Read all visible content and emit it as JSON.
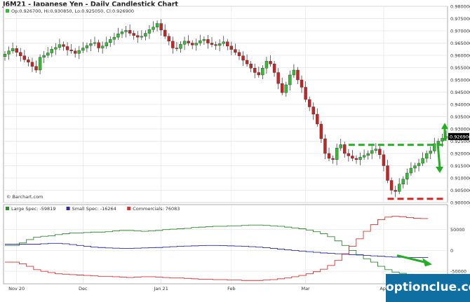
{
  "chart_title": "J6M21 - Japanese Yen - Daily Candlestick Chart",
  "ohlc_label": "Op:0.926700, Hi:0.930850, Lo:0.925050, Cl:0.926900",
  "last_price_label": "0.926900",
  "credit": "© Barchart.com",
  "watermark": "optionclue.com",
  "colors": {
    "up": "#2fbf2f",
    "down": "#cc2222",
    "large_spec": "#2e8b2e",
    "small_spec": "#2b2bb0",
    "commercials": "#e03030",
    "annotation_green": "#22b022",
    "annotation_red": "#dd2222",
    "watermark_bg": "#0f6fa3"
  },
  "chart_data": [
    {
      "type": "candlestick",
      "title": "J6M21 - Japanese Yen - Daily Candlestick Chart",
      "ylim": [
        0.9,
        0.98
      ],
      "ytick_step": 0.005,
      "x_labels": [
        "Nov 20",
        "Dec",
        "Jan 21",
        "Feb",
        "Mar",
        "Apr"
      ],
      "x_label_index": [
        3,
        20,
        40,
        58,
        77,
        97
      ],
      "num_bars": 114,
      "closes": [
        0.9605,
        0.9618,
        0.9628,
        0.9612,
        0.9598,
        0.9582,
        0.9572,
        0.9555,
        0.954,
        0.9592,
        0.96,
        0.961,
        0.9625,
        0.9632,
        0.9644,
        0.9636,
        0.9622,
        0.9618,
        0.9608,
        0.962,
        0.963,
        0.964,
        0.9648,
        0.9652,
        0.963,
        0.9638,
        0.9652,
        0.9665,
        0.9674,
        0.9688,
        0.9696,
        0.9702,
        0.969,
        0.9681,
        0.9674,
        0.9678,
        0.969,
        0.9705,
        0.9715,
        0.973,
        0.9703,
        0.9678,
        0.9658,
        0.963,
        0.9628,
        0.9645,
        0.9658,
        0.965,
        0.9642,
        0.965,
        0.966,
        0.9665,
        0.965,
        0.9644,
        0.964,
        0.9648,
        0.9655,
        0.9638,
        0.9624,
        0.9612,
        0.9598,
        0.958,
        0.9565,
        0.9548,
        0.953,
        0.952,
        0.9548,
        0.9576,
        0.9565,
        0.953,
        0.9485,
        0.9448,
        0.948,
        0.952,
        0.954,
        0.95,
        0.947,
        0.942,
        0.939,
        0.936,
        0.932,
        0.926,
        0.92,
        0.918,
        0.9175,
        0.9222,
        0.9236,
        0.92,
        0.919,
        0.918,
        0.9175,
        0.9185,
        0.9192,
        0.92,
        0.9212,
        0.9218,
        0.9195,
        0.915,
        0.909,
        0.905,
        0.9045,
        0.9075,
        0.9095,
        0.912,
        0.914,
        0.915,
        0.916,
        0.918,
        0.92,
        0.921,
        0.924,
        0.925,
        0.9262,
        0.9269
      ],
      "last_price": 0.9269,
      "annotations": {
        "resistance_level": 0.9235,
        "support_level": 0.9015
      }
    },
    {
      "type": "line",
      "title": "COT positions",
      "ylim": [
        -80000,
        110000
      ],
      "yticks": [
        50000,
        0,
        -50000
      ],
      "series": [
        {
          "name": "Large Spec",
          "legend_value": -59819,
          "values": [
            12000,
            12000,
            18000,
            26000,
            32000,
            34000,
            35000,
            38000,
            40000,
            42000,
            42000,
            43000,
            44000,
            44000,
            45000,
            47000,
            48000,
            48000,
            47000,
            46000,
            47000,
            48000,
            50000,
            51000,
            52000,
            53000,
            55000,
            56000,
            57000,
            58000,
            58000,
            59000,
            59000,
            60000,
            61000,
            61000,
            60000,
            59000,
            58000,
            56000,
            54000,
            52000,
            49000,
            45000,
            40000,
            33000,
            23000,
            12000,
            0,
            -10000,
            -20000,
            -28000,
            -38000,
            -46000,
            -52000,
            -55000,
            -57000,
            -58000,
            -59000,
            -59819
          ]
        },
        {
          "name": "Small Spec",
          "legend_value": -16264,
          "values": [
            15000,
            15000,
            15000,
            15000,
            15000,
            16000,
            17000,
            17000,
            16000,
            14000,
            12000,
            10000,
            8000,
            7000,
            6000,
            5500,
            5000,
            5000,
            5500,
            6000,
            6500,
            7000,
            8000,
            9000,
            10000,
            10500,
            11000,
            11500,
            12000,
            12000,
            11500,
            11000,
            10500,
            10000,
            9000,
            8000,
            6500,
            5000,
            3000,
            1500,
            0,
            -1500,
            -3000,
            -4500,
            -6000,
            -7000,
            -8000,
            -9000,
            -10000,
            -11000,
            -12000,
            -13000,
            -14000,
            -15000,
            -16000,
            -16500,
            -17000,
            -17000,
            -16800,
            -16264
          ]
        },
        {
          "name": "Commercials",
          "legend_value": 76083,
          "values": [
            -28000,
            -28000,
            -32000,
            -38000,
            -46000,
            -50000,
            -53000,
            -56000,
            -57000,
            -58000,
            -59000,
            -60000,
            -61000,
            -62000,
            -62000,
            -63000,
            -64000,
            -65000,
            -64000,
            -63000,
            -63000,
            -64000,
            -65000,
            -66000,
            -66000,
            -67000,
            -68000,
            -69000,
            -69000,
            -70000,
            -70000,
            -71000,
            -71000,
            -72000,
            -72000,
            -72000,
            -71000,
            -70000,
            -68000,
            -66000,
            -63000,
            -60000,
            -56000,
            -51000,
            -45000,
            -36000,
            -24000,
            -8000,
            10000,
            28000,
            46000,
            62000,
            74000,
            80000,
            82000,
            81000,
            79000,
            77000,
            76500,
            76083
          ]
        }
      ]
    }
  ]
}
